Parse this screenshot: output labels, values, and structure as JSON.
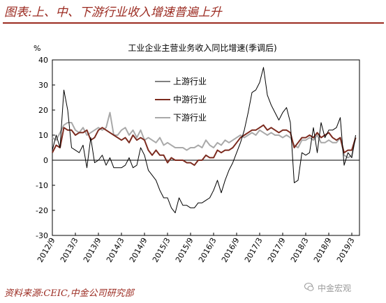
{
  "figure": {
    "title": "图表:上、中、下游行业收入增速普遍上升",
    "source": "资料来源:CEIC,中金公司研究部",
    "watermark": "中金宏观"
  },
  "chart_data": {
    "type": "line",
    "title": "工业企业主营业务收入同比增速(季调后)",
    "ylabel": "%",
    "xlabel": "",
    "ylim": [
      -30,
      40
    ],
    "yticks": [
      -30,
      -20,
      -10,
      0,
      10,
      20,
      30,
      40
    ],
    "xlim": [
      "2012-09",
      "2019-05"
    ],
    "xticks": [
      "2012/9",
      "2013/3",
      "2013/9",
      "2014/3",
      "2014/9",
      "2015/3",
      "2015/9",
      "2016/3",
      "2016/9",
      "2017/3",
      "2017/9",
      "2018/3",
      "2018/9",
      "2019/3"
    ],
    "grid": false,
    "legend": "upper-left",
    "series": [
      {
        "name": "上游行业",
        "color": "#000000",
        "values": [
          [
            "2012-09",
            4
          ],
          [
            "2012-10",
            10
          ],
          [
            "2012-11",
            5
          ],
          [
            "2012-12",
            28
          ],
          [
            "2013-01",
            20
          ],
          [
            "2013-02",
            5
          ],
          [
            "2013-03",
            4
          ],
          [
            "2013-04",
            3
          ],
          [
            "2013-05",
            6
          ],
          [
            "2013-06",
            -3
          ],
          [
            "2013-07",
            9
          ],
          [
            "2013-08",
            -1
          ],
          [
            "2013-09",
            0
          ],
          [
            "2013-10",
            2
          ],
          [
            "2013-11",
            -2
          ],
          [
            "2013-12",
            1
          ],
          [
            "2014-01",
            -3
          ],
          [
            "2014-02",
            -3
          ],
          [
            "2014-03",
            -3
          ],
          [
            "2014-04",
            -2
          ],
          [
            "2014-05",
            1
          ],
          [
            "2014-06",
            -3
          ],
          [
            "2014-07",
            -2
          ],
          [
            "2014-08",
            5
          ],
          [
            "2014-09",
            2
          ],
          [
            "2014-10",
            -4
          ],
          [
            "2014-11",
            -6
          ],
          [
            "2014-12",
            -8
          ],
          [
            "2015-01",
            -12
          ],
          [
            "2015-02",
            -15
          ],
          [
            "2015-03",
            -15
          ],
          [
            "2015-04",
            -19
          ],
          [
            "2015-05",
            -21
          ],
          [
            "2015-06",
            -15
          ],
          [
            "2015-07",
            -18
          ],
          [
            "2015-08",
            -18
          ],
          [
            "2015-09",
            -19
          ],
          [
            "2015-10",
            -19
          ],
          [
            "2015-11",
            -17
          ],
          [
            "2015-12",
            -17
          ],
          [
            "2016-01",
            -16
          ],
          [
            "2016-02",
            -15
          ],
          [
            "2016-03",
            -12
          ],
          [
            "2016-04",
            -8
          ],
          [
            "2016-05",
            -13
          ],
          [
            "2016-06",
            -8
          ],
          [
            "2016-07",
            -4
          ],
          [
            "2016-08",
            -1
          ],
          [
            "2016-09",
            3
          ],
          [
            "2016-10",
            7
          ],
          [
            "2016-11",
            12
          ],
          [
            "2016-12",
            19
          ],
          [
            "2017-01",
            27
          ],
          [
            "2017-02",
            28
          ],
          [
            "2017-03",
            31
          ],
          [
            "2017-04",
            37
          ],
          [
            "2017-05",
            26
          ],
          [
            "2017-06",
            22
          ],
          [
            "2017-07",
            19
          ],
          [
            "2017-08",
            16
          ],
          [
            "2017-09",
            19
          ],
          [
            "2017-10",
            21
          ],
          [
            "2017-11",
            15
          ],
          [
            "2017-12",
            -9
          ],
          [
            "2018-01",
            -8
          ],
          [
            "2018-02",
            3
          ],
          [
            "2018-03",
            2
          ],
          [
            "2018-04",
            3
          ],
          [
            "2018-05",
            13
          ],
          [
            "2018-06",
            3
          ],
          [
            "2018-07",
            15
          ],
          [
            "2018-08",
            9
          ],
          [
            "2018-09",
            12
          ],
          [
            "2018-10",
            12
          ],
          [
            "2018-11",
            13
          ],
          [
            "2018-12",
            17
          ],
          [
            "2019-01",
            -2
          ],
          [
            "2019-02",
            3
          ],
          [
            "2019-03",
            1
          ],
          [
            "2019-04",
            10
          ]
        ]
      },
      {
        "name": "中游行业",
        "color": "#7b2a1e",
        "values": [
          [
            "2012-09",
            3
          ],
          [
            "2012-10",
            6
          ],
          [
            "2012-11",
            5
          ],
          [
            "2012-12",
            13
          ],
          [
            "2013-01",
            12
          ],
          [
            "2013-02",
            12
          ],
          [
            "2013-03",
            10
          ],
          [
            "2013-04",
            11
          ],
          [
            "2013-05",
            11
          ],
          [
            "2013-06",
            12
          ],
          [
            "2013-07",
            8
          ],
          [
            "2013-08",
            9
          ],
          [
            "2013-09",
            12
          ],
          [
            "2013-10",
            13
          ],
          [
            "2013-11",
            12
          ],
          [
            "2013-12",
            11
          ],
          [
            "2014-01",
            10
          ],
          [
            "2014-02",
            9
          ],
          [
            "2014-03",
            8
          ],
          [
            "2014-04",
            9
          ],
          [
            "2014-05",
            7
          ],
          [
            "2014-06",
            10
          ],
          [
            "2014-07",
            8
          ],
          [
            "2014-08",
            9
          ],
          [
            "2014-09",
            8
          ],
          [
            "2014-10",
            4
          ],
          [
            "2014-11",
            2
          ],
          [
            "2014-12",
            4
          ],
          [
            "2015-01",
            2
          ],
          [
            "2015-02",
            2
          ],
          [
            "2015-03",
            -1
          ],
          [
            "2015-04",
            1
          ],
          [
            "2015-05",
            0
          ],
          [
            "2015-06",
            0
          ],
          [
            "2015-07",
            0
          ],
          [
            "2015-08",
            -1
          ],
          [
            "2015-09",
            -1
          ],
          [
            "2015-10",
            -2
          ],
          [
            "2015-11",
            0
          ],
          [
            "2015-12",
            0
          ],
          [
            "2016-01",
            2
          ],
          [
            "2016-02",
            1
          ],
          [
            "2016-03",
            1
          ],
          [
            "2016-04",
            4
          ],
          [
            "2016-05",
            3
          ],
          [
            "2016-06",
            4
          ],
          [
            "2016-07",
            4
          ],
          [
            "2016-08",
            5
          ],
          [
            "2016-09",
            7
          ],
          [
            "2016-10",
            9
          ],
          [
            "2016-11",
            10
          ],
          [
            "2016-12",
            11
          ],
          [
            "2017-01",
            12
          ],
          [
            "2017-02",
            12
          ],
          [
            "2017-03",
            13
          ],
          [
            "2017-04",
            14
          ],
          [
            "2017-05",
            12
          ],
          [
            "2017-06",
            13
          ],
          [
            "2017-07",
            12
          ],
          [
            "2017-08",
            11
          ],
          [
            "2017-09",
            12
          ],
          [
            "2017-10",
            12
          ],
          [
            "2017-11",
            11
          ],
          [
            "2017-12",
            5
          ],
          [
            "2018-01",
            7
          ],
          [
            "2018-02",
            9
          ],
          [
            "2018-03",
            9
          ],
          [
            "2018-04",
            10
          ],
          [
            "2018-05",
            9
          ],
          [
            "2018-06",
            11
          ],
          [
            "2018-07",
            9
          ],
          [
            "2018-08",
            10
          ],
          [
            "2018-09",
            11
          ],
          [
            "2018-10",
            9
          ],
          [
            "2018-11",
            8
          ],
          [
            "2018-12",
            9
          ],
          [
            "2019-01",
            3
          ],
          [
            "2019-02",
            4
          ],
          [
            "2019-03",
            4
          ],
          [
            "2019-04",
            9
          ]
        ]
      },
      {
        "name": "下游行业",
        "color": "#a9a9a9",
        "values": [
          [
            "2012-09",
            9
          ],
          [
            "2012-10",
            8
          ],
          [
            "2012-11",
            11
          ],
          [
            "2012-12",
            14
          ],
          [
            "2013-01",
            15
          ],
          [
            "2013-02",
            15
          ],
          [
            "2013-03",
            12
          ],
          [
            "2013-04",
            11
          ],
          [
            "2013-05",
            13
          ],
          [
            "2013-06",
            10
          ],
          [
            "2013-07",
            11
          ],
          [
            "2013-08",
            12
          ],
          [
            "2013-09",
            13
          ],
          [
            "2013-10",
            12
          ],
          [
            "2013-11",
            13
          ],
          [
            "2013-12",
            19
          ],
          [
            "2014-01",
            10
          ],
          [
            "2014-02",
            10
          ],
          [
            "2014-03",
            12
          ],
          [
            "2014-04",
            13
          ],
          [
            "2014-05",
            10
          ],
          [
            "2014-06",
            12
          ],
          [
            "2014-07",
            9
          ],
          [
            "2014-08",
            12
          ],
          [
            "2014-09",
            8
          ],
          [
            "2014-10",
            9
          ],
          [
            "2014-11",
            8
          ],
          [
            "2014-12",
            7
          ],
          [
            "2015-01",
            9
          ],
          [
            "2015-02",
            6
          ],
          [
            "2015-03",
            7
          ],
          [
            "2015-04",
            6
          ],
          [
            "2015-05",
            5
          ],
          [
            "2015-06",
            5
          ],
          [
            "2015-07",
            5
          ],
          [
            "2015-08",
            4
          ],
          [
            "2015-09",
            5
          ],
          [
            "2015-10",
            5
          ],
          [
            "2015-11",
            6
          ],
          [
            "2015-12",
            5
          ],
          [
            "2016-01",
            8
          ],
          [
            "2016-02",
            6
          ],
          [
            "2016-03",
            5
          ],
          [
            "2016-04",
            7
          ],
          [
            "2016-05",
            6
          ],
          [
            "2016-06",
            8
          ],
          [
            "2016-07",
            7
          ],
          [
            "2016-08",
            8
          ],
          [
            "2016-09",
            9
          ],
          [
            "2016-10",
            10
          ],
          [
            "2016-11",
            9
          ],
          [
            "2016-12",
            10
          ],
          [
            "2017-01",
            11
          ],
          [
            "2017-02",
            10
          ],
          [
            "2017-03",
            12
          ],
          [
            "2017-04",
            11
          ],
          [
            "2017-05",
            10
          ],
          [
            "2017-06",
            11
          ],
          [
            "2017-07",
            10
          ],
          [
            "2017-08",
            10
          ],
          [
            "2017-09",
            9
          ],
          [
            "2017-10",
            10
          ],
          [
            "2017-11",
            9
          ],
          [
            "2017-12",
            6
          ],
          [
            "2018-01",
            5
          ],
          [
            "2018-02",
            8
          ],
          [
            "2018-03",
            8
          ],
          [
            "2018-04",
            9
          ],
          [
            "2018-05",
            8
          ],
          [
            "2018-06",
            10
          ],
          [
            "2018-07",
            7
          ],
          [
            "2018-08",
            7
          ],
          [
            "2018-09",
            8
          ],
          [
            "2018-10",
            7
          ],
          [
            "2018-11",
            7
          ],
          [
            "2018-12",
            9
          ],
          [
            "2019-01",
            2
          ],
          [
            "2019-02",
            1
          ],
          [
            "2019-03",
            2
          ],
          [
            "2019-04",
            9
          ]
        ]
      }
    ]
  }
}
